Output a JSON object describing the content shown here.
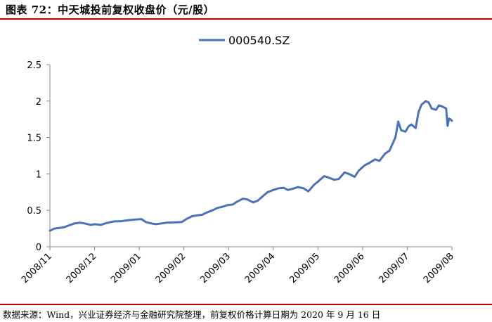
{
  "header": {
    "title": "图表 72：中天城投前复权收盘价（元/股）"
  },
  "footer": {
    "source": "数据来源：Wind，兴业证券经济与金融研究院整理，前复权价格计算日期为 2020 年 9 月 16 日"
  },
  "colors": {
    "line": "#4a72b8",
    "axis": "#888888",
    "rule": "#c00000"
  },
  "chart_data": {
    "type": "line",
    "legend": "top-center",
    "grid": false,
    "ylim": [
      0,
      2.5
    ],
    "yticks": [
      "0",
      "0.5",
      "1",
      "1.5",
      "2",
      "2.5"
    ],
    "x_ticks": [
      "2008/11",
      "2008/12",
      "2009/01",
      "2009/02",
      "2009/03",
      "2009/04",
      "2009/05",
      "2009/06",
      "2009/07",
      "2009/08"
    ],
    "series": [
      {
        "name": "000540.SZ",
        "points": [
          [
            "2008-11-03",
            0.22
          ],
          [
            "2008-11-06",
            0.25
          ],
          [
            "2008-11-10",
            0.26
          ],
          [
            "2008-11-13",
            0.27
          ],
          [
            "2008-11-17",
            0.3
          ],
          [
            "2008-11-20",
            0.32
          ],
          [
            "2008-11-24",
            0.33
          ],
          [
            "2008-11-27",
            0.32
          ],
          [
            "2008-12-01",
            0.3
          ],
          [
            "2008-12-04",
            0.31
          ],
          [
            "2008-12-08",
            0.3
          ],
          [
            "2008-12-11",
            0.32
          ],
          [
            "2008-12-15",
            0.34
          ],
          [
            "2008-12-18",
            0.35
          ],
          [
            "2008-12-22",
            0.35
          ],
          [
            "2008-12-25",
            0.36
          ],
          [
            "2008-12-29",
            0.37
          ],
          [
            "2009-01-05",
            0.38
          ],
          [
            "2009-01-08",
            0.34
          ],
          [
            "2009-01-12",
            0.32
          ],
          [
            "2009-01-15",
            0.31
          ],
          [
            "2009-01-19",
            0.32
          ],
          [
            "2009-01-22",
            0.33
          ],
          [
            "2009-02-02",
            0.34
          ],
          [
            "2009-02-05",
            0.38
          ],
          [
            "2009-02-09",
            0.42
          ],
          [
            "2009-02-12",
            0.43
          ],
          [
            "2009-02-16",
            0.44
          ],
          [
            "2009-02-19",
            0.47
          ],
          [
            "2009-02-23",
            0.5
          ],
          [
            "2009-02-26",
            0.53
          ],
          [
            "2009-03-02",
            0.55
          ],
          [
            "2009-03-05",
            0.57
          ],
          [
            "2009-03-09",
            0.58
          ],
          [
            "2009-03-12",
            0.62
          ],
          [
            "2009-03-16",
            0.66
          ],
          [
            "2009-03-19",
            0.65
          ],
          [
            "2009-03-23",
            0.61
          ],
          [
            "2009-03-26",
            0.63
          ],
          [
            "2009-03-30",
            0.7
          ],
          [
            "2009-04-02",
            0.75
          ],
          [
            "2009-04-06",
            0.78
          ],
          [
            "2009-04-09",
            0.8
          ],
          [
            "2009-04-13",
            0.81
          ],
          [
            "2009-04-16",
            0.78
          ],
          [
            "2009-04-20",
            0.8
          ],
          [
            "2009-04-23",
            0.82
          ],
          [
            "2009-04-27",
            0.8
          ],
          [
            "2009-04-30",
            0.76
          ],
          [
            "2009-05-04",
            0.85
          ],
          [
            "2009-05-07",
            0.9
          ],
          [
            "2009-05-11",
            0.97
          ],
          [
            "2009-05-14",
            0.95
          ],
          [
            "2009-05-18",
            0.92
          ],
          [
            "2009-05-21",
            0.93
          ],
          [
            "2009-05-25",
            1.02
          ],
          [
            "2009-05-28",
            1.0
          ],
          [
            "2009-06-01",
            0.96
          ],
          [
            "2009-06-04",
            1.05
          ],
          [
            "2009-06-08",
            1.12
          ],
          [
            "2009-06-11",
            1.15
          ],
          [
            "2009-06-15",
            1.2
          ],
          [
            "2009-06-18",
            1.18
          ],
          [
            "2009-06-22",
            1.28
          ],
          [
            "2009-06-25",
            1.32
          ],
          [
            "2009-06-29",
            1.5
          ],
          [
            "2009-07-01",
            1.72
          ],
          [
            "2009-07-03",
            1.6
          ],
          [
            "2009-07-06",
            1.58
          ],
          [
            "2009-07-08",
            1.65
          ],
          [
            "2009-07-10",
            1.68
          ],
          [
            "2009-07-13",
            1.63
          ],
          [
            "2009-07-15",
            1.85
          ],
          [
            "2009-07-17",
            1.95
          ],
          [
            "2009-07-20",
            2.0
          ],
          [
            "2009-07-22",
            1.98
          ],
          [
            "2009-07-24",
            1.9
          ],
          [
            "2009-07-27",
            1.88
          ],
          [
            "2009-07-29",
            1.94
          ],
          [
            "2009-07-31",
            1.93
          ],
          [
            "2009-08-03",
            1.9
          ],
          [
            "2009-08-04",
            1.66
          ],
          [
            "2009-08-05",
            1.76
          ],
          [
            "2009-08-06",
            1.75
          ],
          [
            "2009-08-07",
            1.73
          ]
        ]
      }
    ]
  }
}
